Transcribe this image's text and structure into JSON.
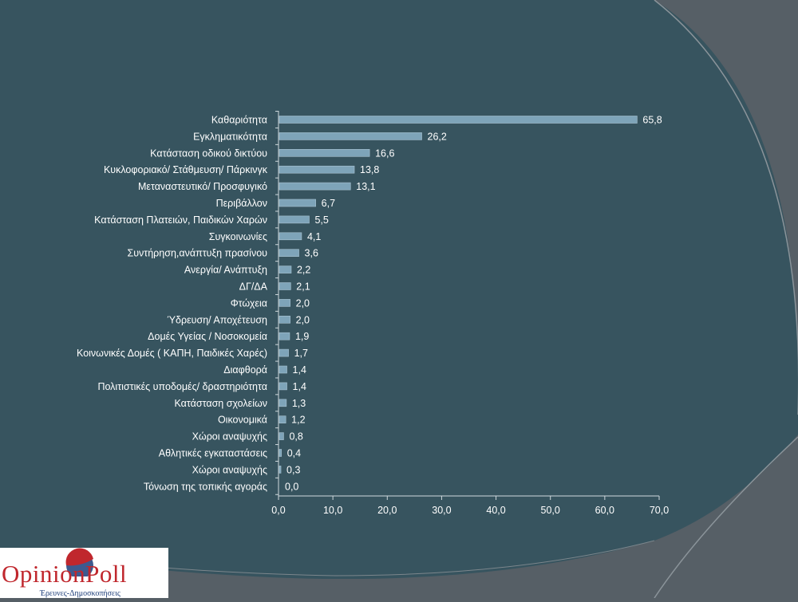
{
  "colors": {
    "background": "#565f66",
    "panel": "#37545f",
    "bar": "#7ea4b9",
    "text": "#ffffff",
    "logo_red": "#c0272d",
    "logo_blue": "#1c3d78"
  },
  "logo": {
    "name": "OpinionPoll",
    "tagline": "Έρευνες-Δημοσκοπήσεις"
  },
  "chart_data": {
    "type": "bar",
    "orientation": "horizontal",
    "categories": [
      "Καθαριότητα",
      "Εγκληματικότητα",
      "Κατάσταση οδικού δικτύου",
      "Κυκλοφοριακό/ Στάθμευση/ Πάρκινγκ",
      "Μεταναστευτικό/ Προσφυγικό",
      "Περιβάλλον",
      "Κατάσταση Πλατειών, Παιδικών Χαρών",
      "Συγκοινωνίες",
      "Συντήρηση,ανάπτυξη πρασίνου",
      "Ανεργία/ Ανάπτυξη",
      "ΔΓ/ΔΑ",
      "Φτώχεια",
      "Ύδρευση/ Αποχέτευση",
      "Δομές Υγείας / Νοσοκομεία",
      "Κοινωνικές Δομές ( ΚΑΠΗ, Παιδικές Χαρές)",
      "Διαφθορά",
      "Πολιτιστικές υποδομές/ δραστηριότητα",
      "Κατάσταση σχολείων",
      "Οικονομικά",
      "Χώροι αναψυχής",
      "Αθλητικές εγκαταστάσεις",
      "Χώροι αναψυχής",
      "Τόνωση της τοπικής αγοράς"
    ],
    "values": [
      65.8,
      26.2,
      16.6,
      13.8,
      13.1,
      6.7,
      5.5,
      4.1,
      3.6,
      2.2,
      2.1,
      2.0,
      2.0,
      1.9,
      1.7,
      1.4,
      1.4,
      1.3,
      1.2,
      0.8,
      0.4,
      0.3,
      0.0
    ],
    "value_labels": [
      "65,8",
      "26,2",
      "16,6",
      "13,8",
      "13,1",
      "6,7",
      "5,5",
      "4,1",
      "3,6",
      "2,2",
      "2,1",
      "2,0",
      "2,0",
      "1,9",
      "1,7",
      "1,4",
      "1,4",
      "1,3",
      "1,2",
      "0,8",
      "0,4",
      "0,3",
      "0,0"
    ],
    "xlim": [
      0,
      70
    ],
    "xticks": [
      0,
      10,
      20,
      30,
      40,
      50,
      60,
      70
    ],
    "xtick_labels": [
      "0,0",
      "10,0",
      "20,0",
      "30,0",
      "40,0",
      "50,0",
      "60,0",
      "70,0"
    ],
    "grid": false,
    "legend": "none"
  }
}
